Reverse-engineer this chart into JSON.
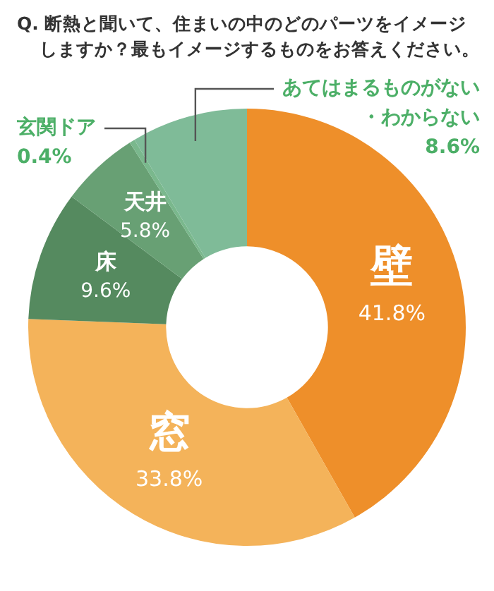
{
  "chart_data": {
    "type": "donut",
    "title": "Q. 断熱と聞いて、住まいの中のどのパーツをイメージしますか？最もイメージするものをお答えください。",
    "categories": [
      "壁",
      "窓",
      "床",
      "天井",
      "玄関ドア",
      "あてはまるものがない・わからない"
    ],
    "values": [
      41.8,
      33.8,
      9.6,
      5.8,
      0.4,
      8.6
    ],
    "value_labels": [
      "41.8%",
      "33.8%",
      "9.6%",
      "5.8%",
      "0.4%",
      "8.6%"
    ],
    "colors": [
      "#ee8f2a",
      "#f4b35a",
      "#558a5f",
      "#68a074",
      "#7ab88d",
      "#7fbb98"
    ],
    "legend": false
  }
}
